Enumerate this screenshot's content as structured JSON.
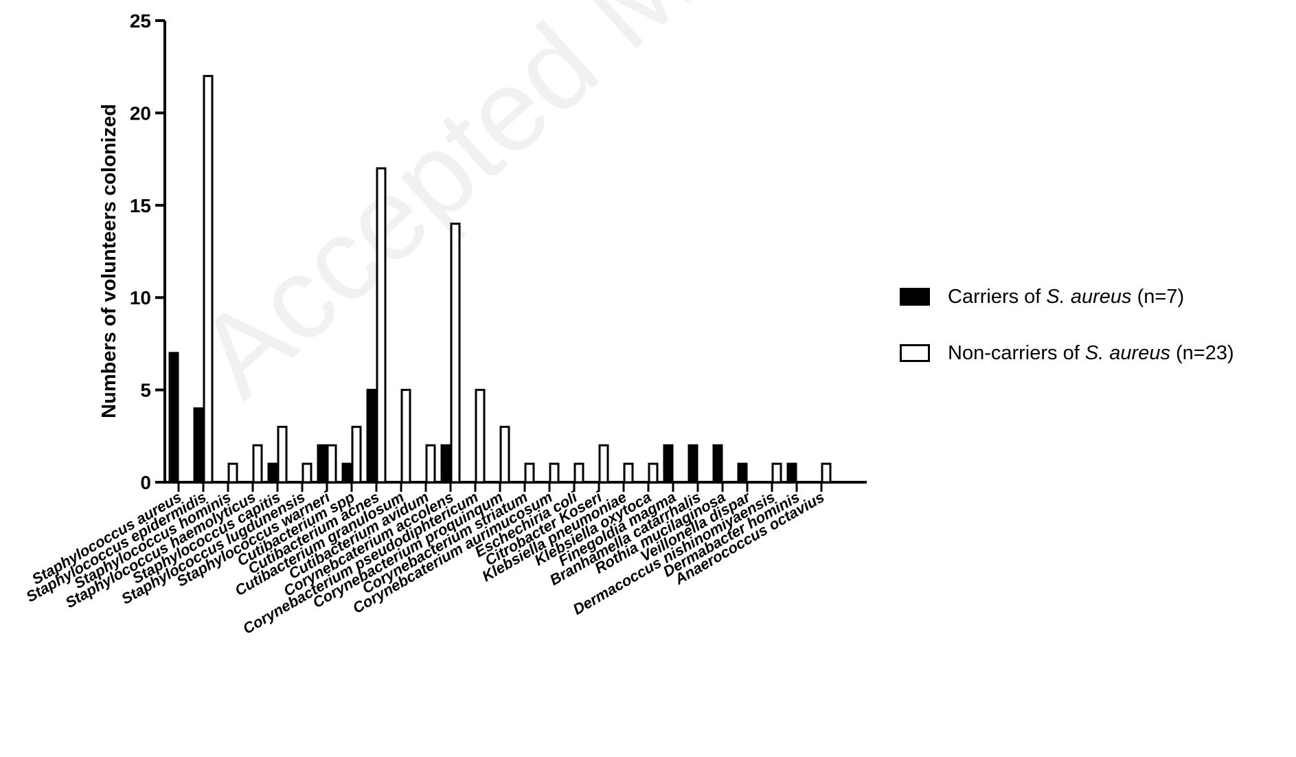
{
  "watermark": "Accepted Manuscript",
  "legend": [
    {
      "prefix": "Carriers of ",
      "italic": "S. aureus",
      "suffix": " (n=7)",
      "color": "#000000",
      "fill": "solid"
    },
    {
      "prefix": "Non-carriers of ",
      "italic": "S. aureus",
      "suffix": " (n=23)",
      "color": "#ffffff",
      "fill": "open"
    }
  ],
  "chart_data": {
    "type": "bar",
    "title": "",
    "xlabel": "",
    "ylabel": "Numbers of volunteers colonized",
    "ylim": [
      0,
      25
    ],
    "yticks": [
      0,
      5,
      10,
      15,
      20,
      25
    ],
    "grid": false,
    "legend_position": "right",
    "categories": [
      "Staphylococcus aureus",
      "Staphylococcus epidermidis",
      "Staphylococcus hominis",
      "Staphylococcus haemolyticus",
      "Staphylococcus capitis",
      "Staphylococcus lugdunensis",
      "Staphylococcus warneri",
      "Cutibacterium spp",
      "Cutibacterium acnes",
      "Cutibacterium granulosum",
      "Cutibacterium avidum",
      "Corynebcaterium accolens",
      "Corynebacterium pseudodiphtericum",
      "Corynebacterium proquinqum",
      "Corynebacterium striatum",
      "Corynebcaterium aurimucosum",
      "Eschechiria coli",
      "Citrobacter Koseri",
      "Klebsiella pneumoniae",
      "Klebsiella oxytoca",
      "Finegoldia magma",
      "Branhamella catarrhalis",
      "Rothia mucilaginosa",
      "Veillonella dispar",
      "Dermacoccus nishinomiyaensis",
      "Dermabacter hominis",
      "Anaerococcus octavius"
    ],
    "series": [
      {
        "name": "Carriers of S. aureus (n=7)",
        "color": "#000000",
        "values": [
          7,
          4,
          0,
          0,
          1,
          0,
          2,
          1,
          5,
          0,
          0,
          2,
          0,
          0,
          0,
          0,
          0,
          0,
          0,
          0,
          2,
          2,
          2,
          1,
          0,
          1,
          0
        ]
      },
      {
        "name": "Non-carriers of S. aureus (n=23)",
        "color": "#ffffff",
        "values": [
          0,
          22,
          1,
          2,
          3,
          1,
          2,
          3,
          17,
          5,
          2,
          14,
          5,
          3,
          1,
          1,
          1,
          2,
          1,
          1,
          0,
          0,
          0,
          0,
          1,
          0,
          1
        ]
      }
    ]
  }
}
